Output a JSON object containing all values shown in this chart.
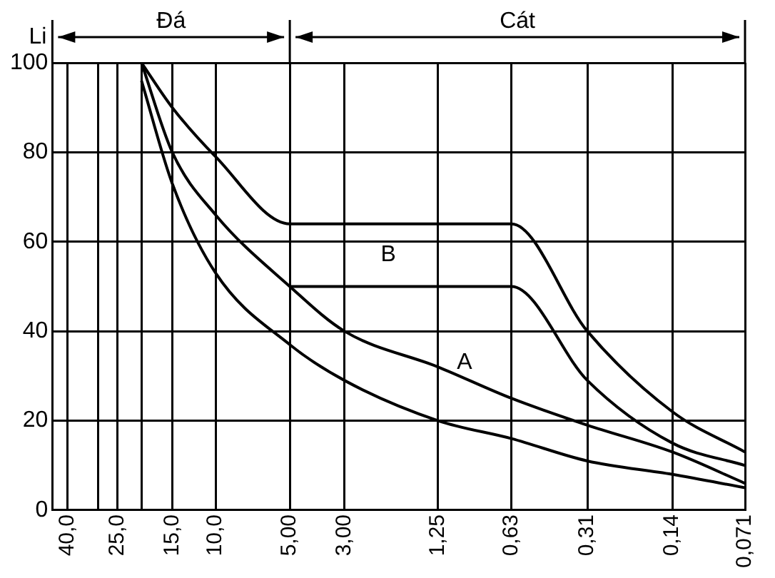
{
  "chart_data": {
    "type": "line",
    "ylabel": "Li",
    "x": [
      20,
      15,
      10,
      5,
      3,
      1.25,
      0.63,
      0.31,
      0.14,
      0.071
    ],
    "series": [
      {
        "color": "#000000",
        "x": [
          20,
          15,
          10,
          5,
          0.63,
          0.31,
          0.14,
          0.071
        ],
        "values": [
          100,
          90,
          79,
          64,
          64,
          40,
          22,
          13
        ]
      },
      {
        "color": "#000000",
        "x": [
          5,
          0.63,
          0.31,
          0.14,
          0.071
        ],
        "values": [
          50,
          50,
          29,
          15,
          10
        ]
      },
      {
        "color": "#000000",
        "values": [
          100,
          80,
          66,
          50,
          40,
          32,
          25,
          19,
          13,
          6
        ]
      },
      {
        "color": "#000000",
        "values": [
          96,
          73,
          53,
          37,
          29,
          20,
          16,
          11,
          8,
          5
        ]
      }
    ],
    "log": "x",
    "xlim": [
      46,
      0.071
    ],
    "xticks": [
      {
        "value": 40,
        "label": "40,0"
      },
      {
        "value": 30,
        "label": null
      },
      {
        "value": 25,
        "label": "25,0"
      },
      {
        "value": 20,
        "label": null
      },
      {
        "value": 15,
        "label": "15,0"
      },
      {
        "value": 10,
        "label": "10,0"
      },
      {
        "value": 5,
        "label": "5,00"
      },
      {
        "value": 3,
        "label": "3,00"
      },
      {
        "value": 1.25,
        "label": "1,25"
      },
      {
        "value": 0.63,
        "label": "0,63"
      },
      {
        "value": 0.31,
        "label": "0,31"
      },
      {
        "value": 0.14,
        "label": "0,14"
      },
      {
        "value": 0.071,
        "label": "0,071"
      }
    ],
    "ylim": [
      0,
      100
    ],
    "yticks": [
      0,
      20,
      40,
      60,
      80,
      100
    ],
    "grid": true,
    "legend": false,
    "marker": "none",
    "line_style": "solid",
    "annotations": [
      "Đá",
      "Cát",
      "B",
      "A"
    ]
  }
}
